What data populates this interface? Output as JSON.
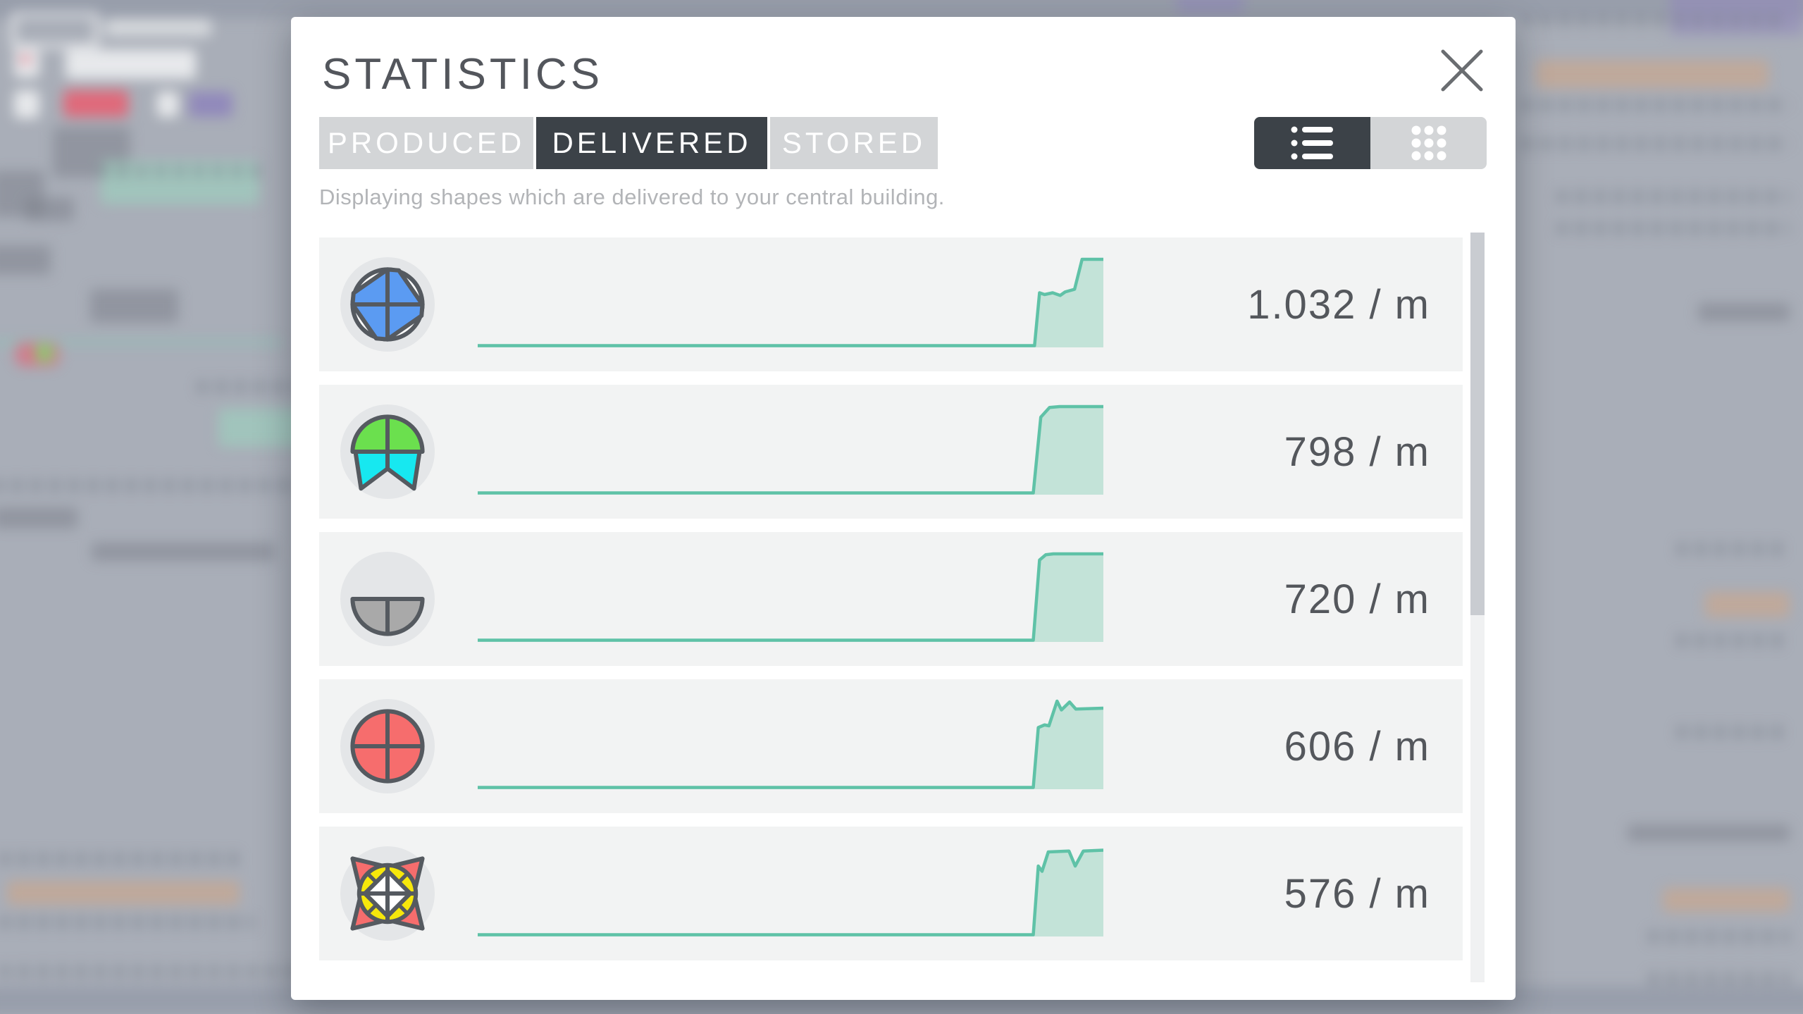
{
  "dialog": {
    "title": "STATISTICS",
    "close": {
      "icon": "close-icon"
    },
    "tabs": [
      {
        "label": "PRODUCED",
        "active": false
      },
      {
        "label": "DELIVERED",
        "active": true
      },
      {
        "label": "STORED",
        "active": false
      }
    ],
    "view_toggle": {
      "active": "list",
      "buttons": [
        "list-view-icon",
        "grid-view-icon"
      ]
    },
    "description": "Displaying shapes which are delivered to your central building.",
    "rows": [
      {
        "icon": "shape-windmill-blue",
        "rate": "1.032 / m"
      },
      {
        "icon": "shape-halfcircle-green-star-cyan",
        "rate": "798 / m"
      },
      {
        "icon": "shape-bottom-halfcircle-gray",
        "rate": "720 / m"
      },
      {
        "icon": "shape-circle-red",
        "rate": "606 / m"
      },
      {
        "icon": "shape-star-red-circle-yellow-windmill-white",
        "rate": "576 / m"
      }
    ],
    "scrollbar": {
      "visible": true
    }
  },
  "chart_data": [
    {
      "type": "area",
      "name": "delivered-rate-sparkline-1",
      "unit": "per minute",
      "current_value": 1032,
      "points": [
        [
          0,
          0.02
        ],
        [
          0.89,
          0.02
        ],
        [
          0.898,
          0.62
        ],
        [
          0.906,
          0.6
        ],
        [
          0.919,
          0.62
        ],
        [
          0.931,
          0.59
        ],
        [
          0.939,
          0.63
        ],
        [
          0.954,
          0.66
        ],
        [
          0.966,
          1.0
        ],
        [
          1,
          1.0
        ]
      ]
    },
    {
      "type": "area",
      "name": "delivered-rate-sparkline-2",
      "unit": "per minute",
      "current_value": 798,
      "points": [
        [
          0,
          0.02
        ],
        [
          0.888,
          0.02
        ],
        [
          0.9,
          0.88
        ],
        [
          0.914,
          0.99
        ],
        [
          0.93,
          1.0
        ],
        [
          1,
          1.0
        ]
      ]
    },
    {
      "type": "area",
      "name": "delivered-rate-sparkline-3",
      "unit": "per minute",
      "current_value": 720,
      "points": [
        [
          0,
          0.02
        ],
        [
          0.888,
          0.02
        ],
        [
          0.898,
          0.93
        ],
        [
          0.908,
          0.99
        ],
        [
          0.92,
          1.0
        ],
        [
          1,
          1.0
        ]
      ]
    },
    {
      "type": "area",
      "name": "delivered-rate-sparkline-4",
      "unit": "per minute",
      "current_value": 606,
      "points": [
        [
          0,
          0.02
        ],
        [
          0.888,
          0.02
        ],
        [
          0.896,
          0.7
        ],
        [
          0.906,
          0.73
        ],
        [
          0.913,
          0.72
        ],
        [
          0.926,
          1.0
        ],
        [
          0.933,
          0.9
        ],
        [
          0.946,
          0.99
        ],
        [
          0.956,
          0.91
        ],
        [
          1,
          0.92
        ]
      ]
    },
    {
      "type": "area",
      "name": "delivered-rate-sparkline-5",
      "unit": "per minute",
      "current_value": 576,
      "points": [
        [
          0,
          0.02
        ],
        [
          0.888,
          0.02
        ],
        [
          0.896,
          0.8
        ],
        [
          0.902,
          0.74
        ],
        [
          0.912,
          0.96
        ],
        [
          0.945,
          0.97
        ],
        [
          0.955,
          0.8
        ],
        [
          0.968,
          0.97
        ],
        [
          1,
          0.98
        ]
      ]
    }
  ],
  "colors": {
    "spark_stroke": "#5fc2a7",
    "spark_fill": "#c3e3d8",
    "tab_active_bg": "#3c4248",
    "tab_inactive_bg": "#d3d5d7",
    "row_bg": "#f2f3f3",
    "title_text": "#53565c",
    "shape_blue": "#5b9bf2",
    "shape_green": "#6be04e",
    "shape_cyan": "#17e8f0",
    "shape_gray": "#a9a9a9",
    "shape_red": "#f66d6d",
    "shape_yellow": "#f6e70b",
    "shape_outline": "#555a60"
  }
}
